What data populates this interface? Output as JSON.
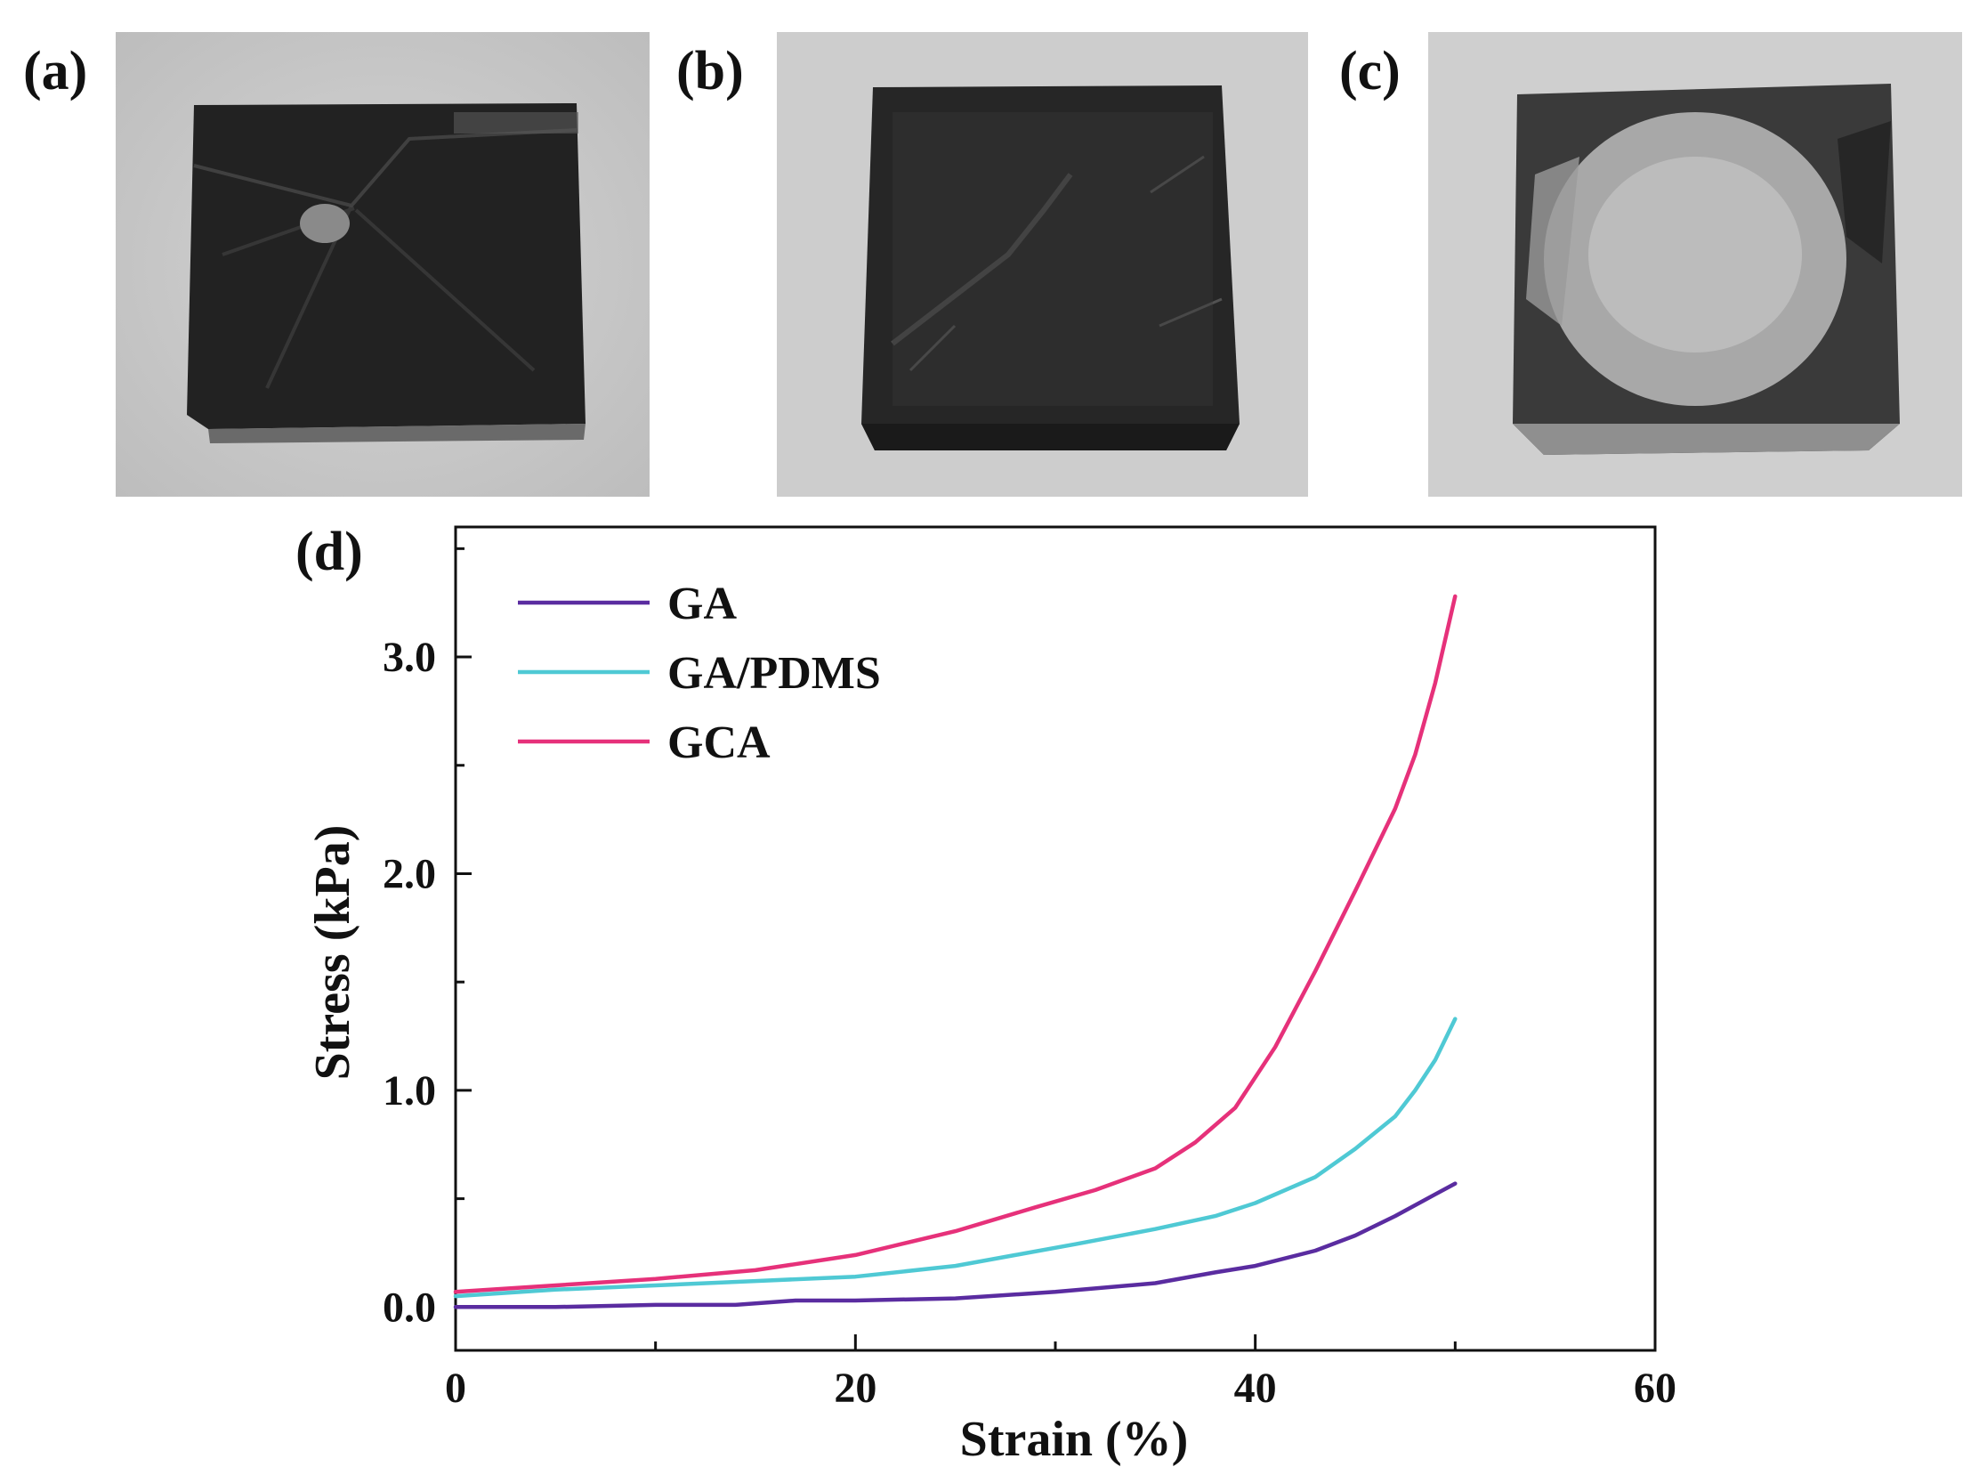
{
  "panels": {
    "a": "(a)",
    "b": "(b)",
    "c": "(c)",
    "d": "(d)"
  },
  "chart_data": {
    "type": "line",
    "xlabel": "Strain (%)",
    "ylabel": "Stress (kPa)",
    "xlim": [
      0,
      60
    ],
    "ylim": [
      -0.2,
      3.6
    ],
    "xticks": [
      0,
      20,
      40,
      60
    ],
    "yticks": [
      0.0,
      1.0,
      2.0,
      3.0
    ],
    "ytick_labels": [
      "0.0",
      "1.0",
      "2.0",
      "3.0"
    ],
    "legend_position": "top-left",
    "grid": false,
    "series": [
      {
        "name": "GA",
        "color": "#5a2ca0",
        "x": [
          0,
          5,
          10,
          14,
          17,
          20,
          25,
          30,
          35,
          38,
          40,
          43,
          45,
          47,
          49,
          50
        ],
        "y": [
          0.0,
          0.0,
          0.01,
          0.01,
          0.03,
          0.03,
          0.04,
          0.07,
          0.11,
          0.16,
          0.19,
          0.26,
          0.33,
          0.42,
          0.52,
          0.57
        ]
      },
      {
        "name": "GA/PDMS",
        "color": "#4fc9d4",
        "x": [
          0,
          5,
          10,
          15,
          20,
          25,
          28,
          31,
          35,
          38,
          40,
          43,
          45,
          47,
          48,
          49,
          50
        ],
        "y": [
          0.05,
          0.08,
          0.1,
          0.12,
          0.14,
          0.19,
          0.24,
          0.29,
          0.36,
          0.42,
          0.48,
          0.6,
          0.73,
          0.88,
          1.0,
          1.14,
          1.33
        ]
      },
      {
        "name": "GCA",
        "color": "#e6317a",
        "x": [
          0,
          5,
          10,
          15,
          20,
          25,
          29,
          32,
          35,
          37,
          39,
          41,
          43,
          45,
          47,
          48,
          49,
          50
        ],
        "y": [
          0.07,
          0.1,
          0.13,
          0.17,
          0.24,
          0.35,
          0.46,
          0.54,
          0.64,
          0.76,
          0.92,
          1.2,
          1.55,
          1.92,
          2.3,
          2.55,
          2.88,
          3.28
        ]
      }
    ]
  }
}
